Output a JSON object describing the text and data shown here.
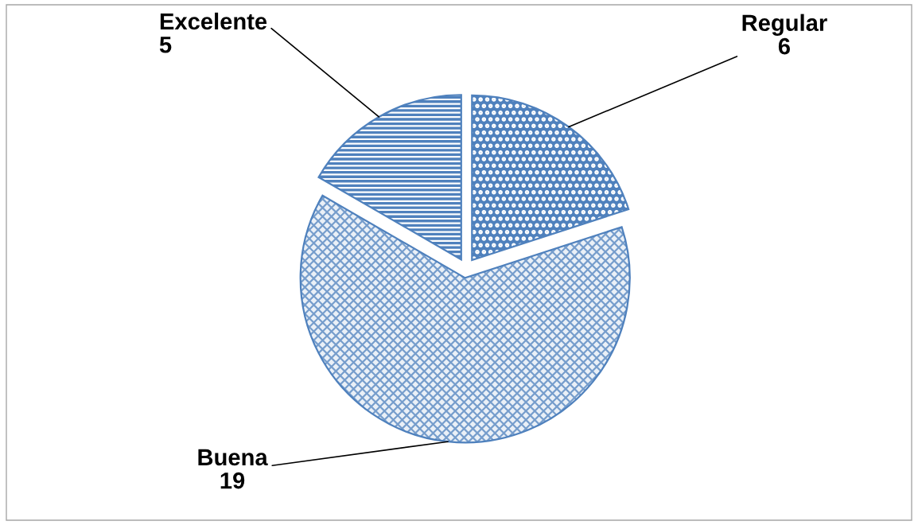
{
  "chart_data": {
    "type": "pie",
    "categories": [
      "Regular",
      "Buena",
      "Excelente"
    ],
    "values": [
      6,
      19,
      5
    ],
    "colors": [
      "#4f81bd",
      "#4f81bd",
      "#4f81bd"
    ],
    "data_labels": true
  }
}
